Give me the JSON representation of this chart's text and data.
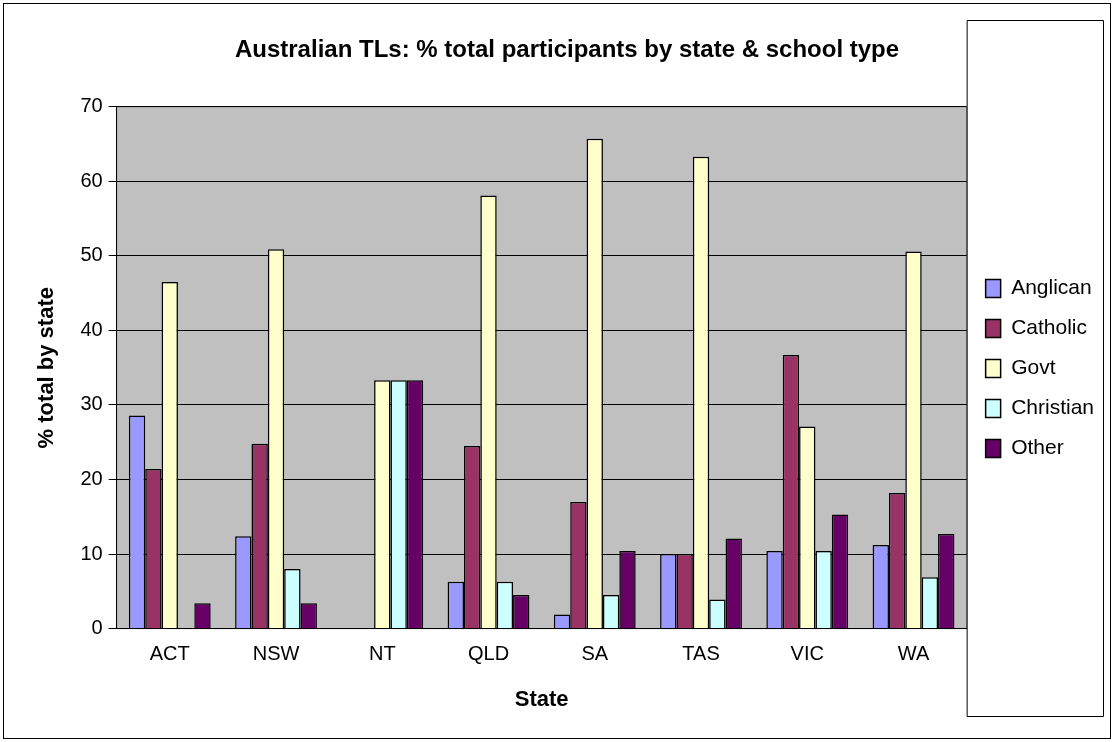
{
  "chart_data": {
    "type": "bar",
    "title": "Australian TLs: % total participants by state & school type",
    "xlabel": "State",
    "ylabel": "% total by state",
    "categories": [
      "ACT",
      "NSW",
      "NT",
      "QLD",
      "SA",
      "TAS",
      "VIC",
      "WA"
    ],
    "series": [
      {
        "name": "Anglican",
        "color": "#9999ff",
        "values": [
          28.6,
          12.4,
          0,
          6.3,
          1.9,
          10.0,
          10.4,
          11.2
        ]
      },
      {
        "name": "Catholic",
        "color": "#993366",
        "values": [
          21.4,
          24.8,
          0,
          24.5,
          17.0,
          10.0,
          36.7,
          18.2
        ]
      },
      {
        "name": "Govt",
        "color": "#ffffcc",
        "values": [
          46.5,
          50.9,
          33.3,
          58.1,
          65.7,
          63.3,
          27.1,
          50.6
        ]
      },
      {
        "name": "Christian",
        "color": "#ccffff",
        "values": [
          0,
          8.0,
          33.3,
          6.3,
          4.5,
          3.9,
          10.4,
          6.9
        ]
      },
      {
        "name": "Other",
        "color": "#660066",
        "values": [
          3.4,
          3.4,
          33.3,
          4.5,
          10.4,
          12.1,
          15.3,
          12.7
        ]
      }
    ],
    "ylim": [
      0,
      70
    ],
    "yticks": [
      0,
      10,
      20,
      30,
      40,
      50,
      60,
      70
    ],
    "grid": "y",
    "legend": "right"
  }
}
